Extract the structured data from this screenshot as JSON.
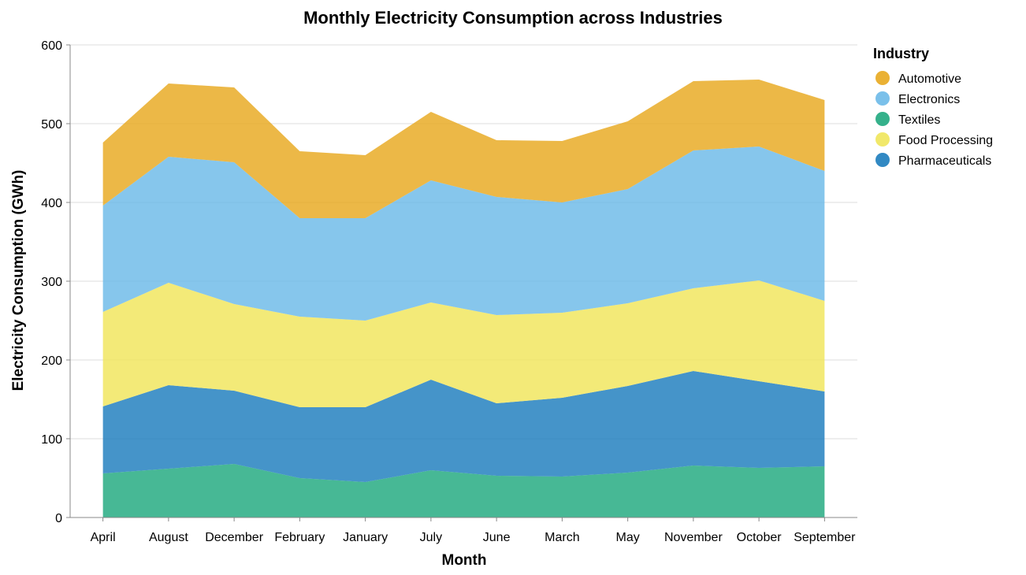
{
  "chart_data": {
    "type": "area",
    "stacked": true,
    "title": "Monthly Electricity Consumption across Industries",
    "xlabel": "Month",
    "ylabel": "Electricity Consumption (GWh)",
    "ylim": [
      0,
      600
    ],
    "yticks": [
      0,
      100,
      200,
      300,
      400,
      500,
      600
    ],
    "grid": true,
    "legend": {
      "title": "Industry",
      "placement": "right"
    },
    "categories": [
      "April",
      "August",
      "December",
      "February",
      "January",
      "July",
      "June",
      "March",
      "May",
      "November",
      "October",
      "September"
    ],
    "stack_order_bottom_to_top": [
      "Textiles",
      "Pharmaceuticals",
      "Food Processing",
      "Electronics",
      "Automotive"
    ],
    "series": [
      {
        "name": "Automotive",
        "color": "#e8a81e",
        "values": [
          80,
          93,
          95,
          85,
          80,
          87,
          72,
          78,
          86,
          88,
          85,
          90
        ]
      },
      {
        "name": "Electronics",
        "color": "#6bb9e8",
        "values": [
          135,
          160,
          180,
          125,
          130,
          155,
          150,
          140,
          145,
          175,
          170,
          165
        ]
      },
      {
        "name": "Textiles",
        "color": "#1fa87e",
        "values": [
          56,
          62,
          68,
          50,
          45,
          60,
          53,
          52,
          57,
          66,
          63,
          65
        ]
      },
      {
        "name": "Food Processing",
        "color": "#f0e55a",
        "values": [
          120,
          130,
          110,
          115,
          110,
          98,
          112,
          108,
          105,
          105,
          128,
          115
        ]
      },
      {
        "name": "Pharmaceuticals",
        "color": "#1c7cbd",
        "values": [
          85,
          106,
          93,
          90,
          95,
          115,
          92,
          100,
          110,
          120,
          110,
          95
        ]
      }
    ]
  }
}
